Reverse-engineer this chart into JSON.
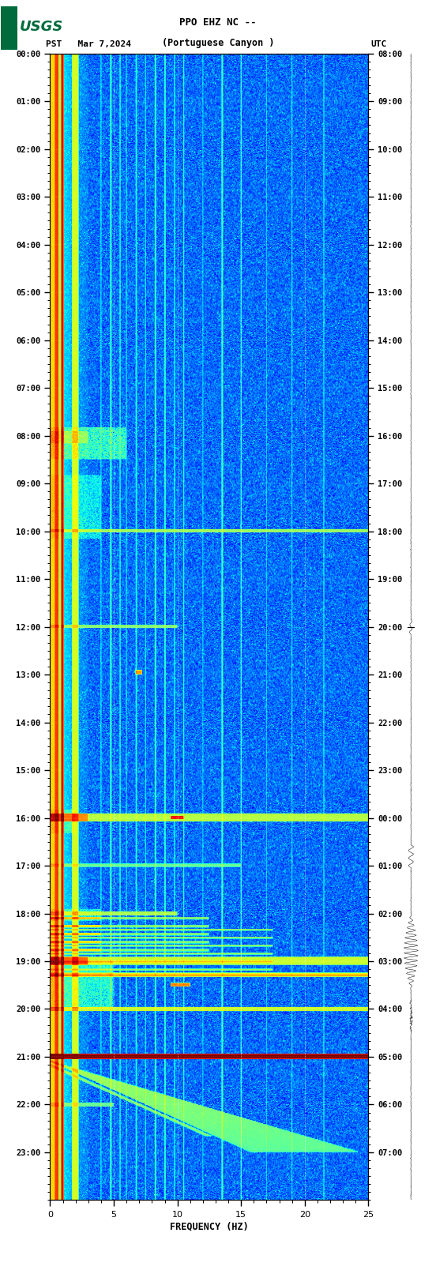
{
  "title_line1": "PPO EHZ NC --",
  "title_line2": "(Portuguese Canyon )",
  "left_label": "PST   Mar 7,2024",
  "right_label": "UTC",
  "xlabel": "FREQUENCY (HZ)",
  "freq_min": 0,
  "freq_max": 25,
  "pst_ticks": [
    "00:00",
    "01:00",
    "02:00",
    "03:00",
    "04:00",
    "05:00",
    "06:00",
    "07:00",
    "08:00",
    "09:00",
    "10:00",
    "11:00",
    "12:00",
    "13:00",
    "14:00",
    "15:00",
    "16:00",
    "17:00",
    "18:00",
    "19:00",
    "20:00",
    "21:00",
    "22:00",
    "23:00"
  ],
  "utc_ticks": [
    "08:00",
    "09:00",
    "10:00",
    "11:00",
    "12:00",
    "13:00",
    "14:00",
    "15:00",
    "16:00",
    "17:00",
    "18:00",
    "19:00",
    "20:00",
    "21:00",
    "22:00",
    "23:00",
    "00:00",
    "01:00",
    "02:00",
    "03:00",
    "04:00",
    "05:00",
    "06:00",
    "07:00"
  ],
  "bg_color": "#ffffff",
  "usgs_green": "#006b3c",
  "fig_width": 5.52,
  "fig_height": 16.13,
  "dpi": 100
}
